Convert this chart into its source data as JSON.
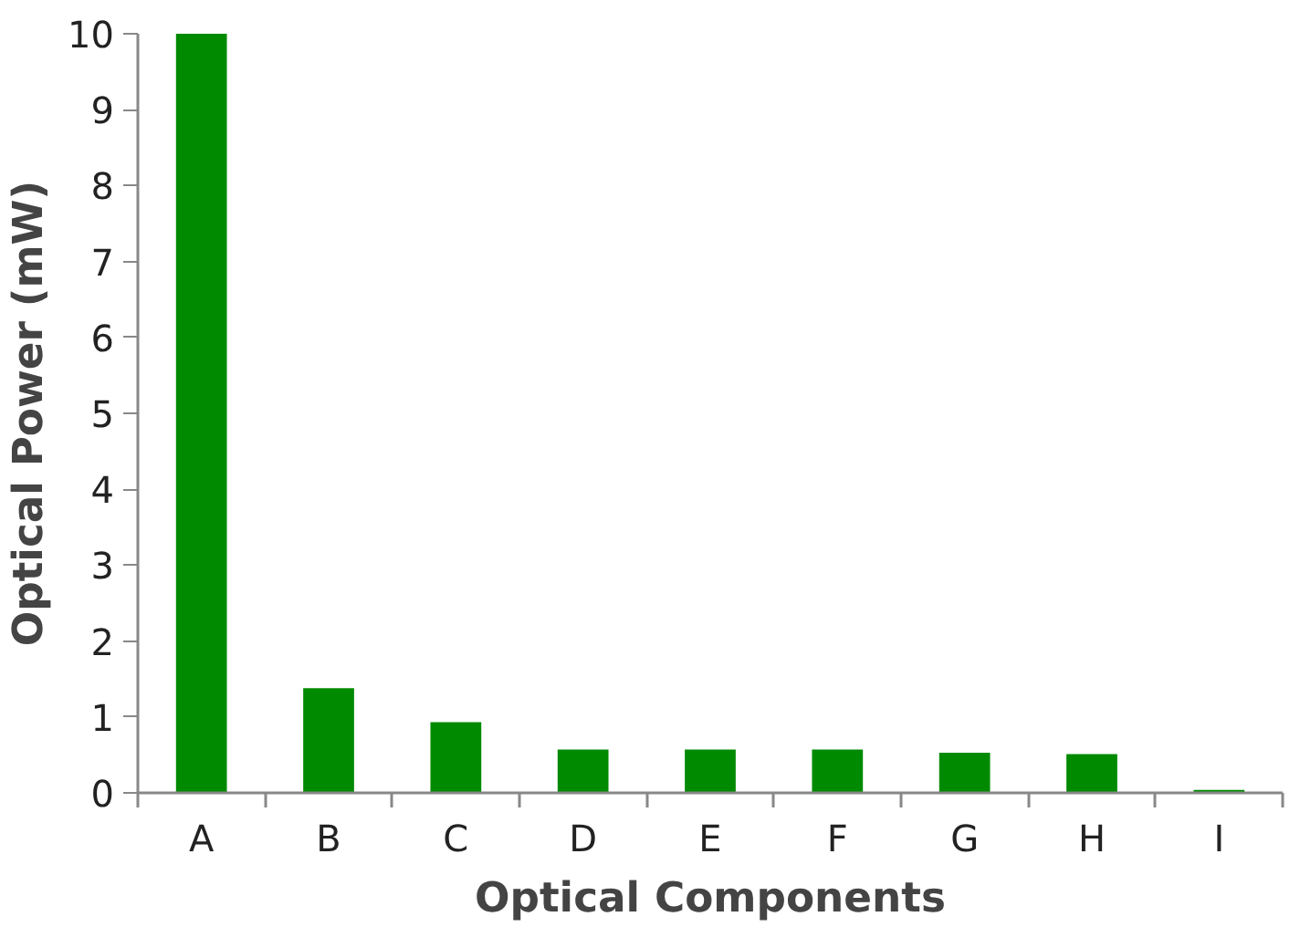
{
  "chart_data": {
    "type": "bar",
    "xlabel": "Optical Components",
    "ylabel": "Optical Power (mW)",
    "categories": [
      "A",
      "B",
      "C",
      "D",
      "E",
      "F",
      "G",
      "H",
      "I"
    ],
    "values": [
      10,
      1.38,
      0.93,
      0.57,
      0.57,
      0.57,
      0.53,
      0.51,
      0.04
    ],
    "color": "#008a00",
    "ylim": [
      0,
      10
    ],
    "yticks": [
      0,
      1,
      2,
      3,
      4,
      5,
      6,
      7,
      8,
      9,
      10
    ],
    "grid": false
  }
}
